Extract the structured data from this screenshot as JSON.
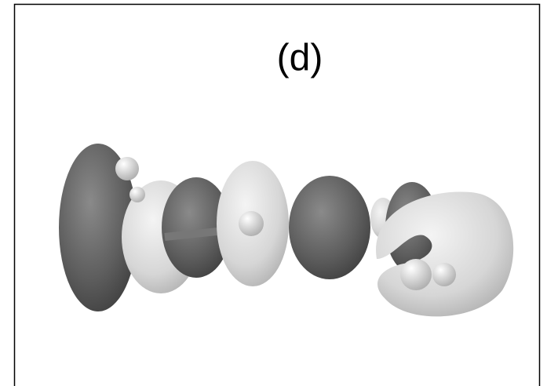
{
  "panel": {
    "label": "(d)"
  }
}
